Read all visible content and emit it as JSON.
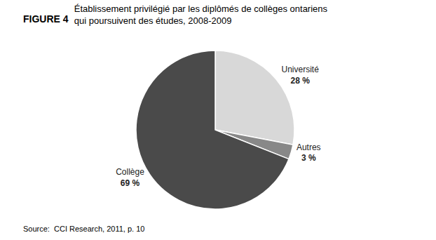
{
  "chart_data": {
    "type": "pie",
    "title": "Établissement privilégié par les diplômés de collèges ontariens\nqui poursuivent des études, 2008-2009",
    "categories": [
      "Université",
      "Autres",
      "Collège"
    ],
    "values": [
      28,
      3,
      69
    ],
    "value_labels": [
      "28 %",
      "3 %",
      "69 %"
    ],
    "colors": [
      "#d8d8d8",
      "#888888",
      "#4a4a4a"
    ],
    "data_labels": true,
    "annotations": [
      "FIGURE 4",
      "Source:\t CCI Research, 2011, p. 10"
    ]
  }
}
